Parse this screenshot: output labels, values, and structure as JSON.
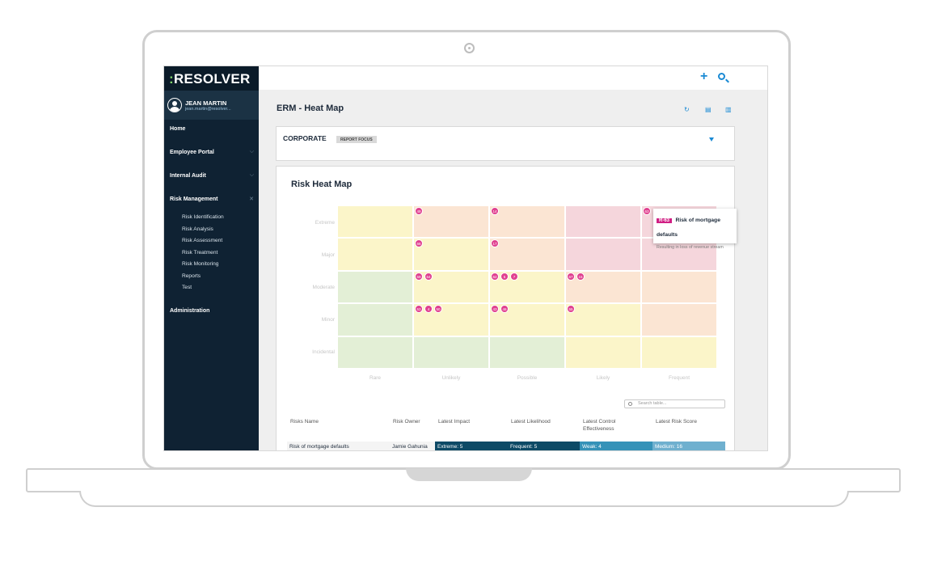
{
  "brand": {
    "logo_colon": ":",
    "logo_text": "RESOLVER"
  },
  "user": {
    "name": "JEAN MARTIN",
    "email": "jean.martin@resolver..."
  },
  "nav": {
    "home": "Home",
    "employee_portal": "Employee Portal",
    "internal_audit": "Internal Audit",
    "risk_management": "Risk Management",
    "risk_sub": [
      "Risk Identification",
      "Risk Analysis",
      "Risk Assessment",
      "Risk Treatment",
      "Risk Monitoring",
      "Reports",
      "Test"
    ],
    "administration": "Administration"
  },
  "topbar": {
    "add_icon": "plus-icon",
    "search_icon": "search-icon"
  },
  "page": {
    "title": "ERM - Heat Map"
  },
  "focus": {
    "title": "CORPORATE",
    "badge": "REPORT FOCUS"
  },
  "heatmap": {
    "title": "Risk Heat Map",
    "y_labels": [
      "Extreme",
      "Major",
      "Moderate",
      "Minor",
      "Incidental"
    ],
    "x_labels": [
      "Rare",
      "Unlikely",
      "Possible",
      "Likely",
      "Frequent"
    ],
    "colors": {
      "green": "#e3efd6",
      "yellow": "#fbf5c9",
      "orange": "#fbe5d3",
      "red": "#f5d6dc",
      "dot": "#e0408f"
    },
    "cell_colors": [
      [
        "yellow",
        "orange",
        "orange",
        "red",
        "red"
      ],
      [
        "yellow",
        "yellow",
        "orange",
        "red",
        "red"
      ],
      [
        "green",
        "yellow",
        "yellow",
        "orange",
        "orange"
      ],
      [
        "green",
        "yellow",
        "yellow",
        "yellow",
        "orange"
      ],
      [
        "green",
        "green",
        "green",
        "yellow",
        "yellow"
      ]
    ],
    "risks": [
      {
        "id": "49",
        "row": 0,
        "col": 1
      },
      {
        "id": "14",
        "row": 0,
        "col": 2
      },
      {
        "id": "63",
        "row": 0,
        "col": 4
      },
      {
        "id": "66",
        "row": 1,
        "col": 1
      },
      {
        "id": "17",
        "row": 1,
        "col": 2
      },
      {
        "id": "59",
        "row": 2,
        "col": 1
      },
      {
        "id": "64",
        "row": 2,
        "col": 1
      },
      {
        "id": "62",
        "row": 2,
        "col": 2
      },
      {
        "id": "5",
        "row": 2,
        "col": 2
      },
      {
        "id": "7",
        "row": 2,
        "col": 2
      },
      {
        "id": "67",
        "row": 2,
        "col": 3
      },
      {
        "id": "15",
        "row": 2,
        "col": 3
      },
      {
        "id": "53",
        "row": 3,
        "col": 1
      },
      {
        "id": "4",
        "row": 3,
        "col": 1
      },
      {
        "id": "50",
        "row": 3,
        "col": 1
      },
      {
        "id": "43",
        "row": 3,
        "col": 2
      },
      {
        "id": "46",
        "row": 3,
        "col": 2
      },
      {
        "id": "55",
        "row": 3,
        "col": 3
      }
    ],
    "tooltip": {
      "code": "R-63",
      "title": "Risk of mortgage defaults",
      "description": "Resulting in loss of revenue stream"
    }
  },
  "table": {
    "search_placeholder": "Search table...",
    "headers": [
      "Risks Name",
      "Risk Owner",
      "Latest Impact",
      "Latest Likelihood",
      "Latest Control Effectiveness",
      "Latest Risk Score"
    ],
    "rows": [
      {
        "name": "Risk of mortgage defaults",
        "owner": "Jamie Gahunia",
        "impact": "Extreme: 5",
        "likelihood": "Frequent: 5",
        "control": "Weak: 4",
        "score": "Medium: 16",
        "colors": [
          "#0d4a66",
          "#0d4a66",
          "#3592b8",
          "#6fb0cf"
        ]
      }
    ]
  }
}
